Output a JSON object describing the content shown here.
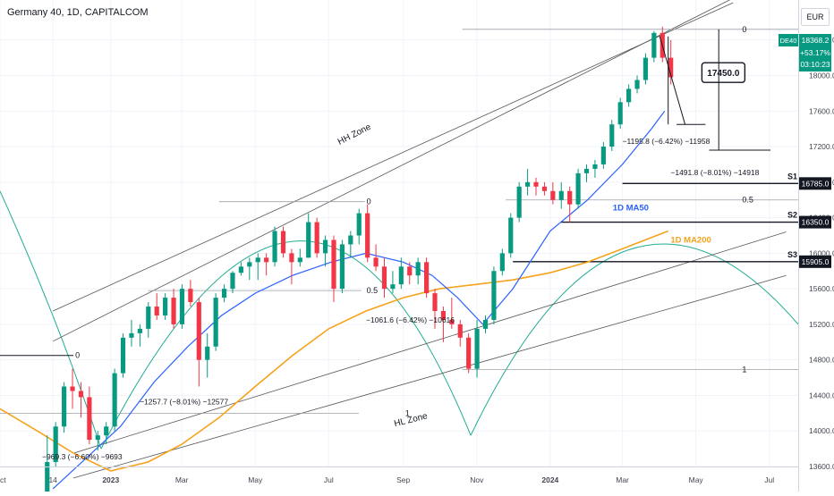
{
  "header": {
    "title": "Germany 40, 1D, CAPITALCOM"
  },
  "currency": "EUR",
  "price_badge": {
    "symbol": "DE40",
    "price": "18368.2",
    "change": "+53.17%",
    "countdown": "03:10:23",
    "color": "#089981"
  },
  "colors": {
    "up": "#089981",
    "down": "#f23645",
    "ma50": "#2962ff",
    "ma200": "#f7a21b",
    "arc": "#22ab94",
    "trend": "#555555",
    "fib": "#9aa0a6"
  },
  "chart_data": {
    "type": "candlestick",
    "symbol": "Germany 40",
    "timeframe": "1D",
    "exchange": "CAPITALCOM",
    "x_tick_labels": [
      "Oct",
      "14",
      "2023",
      "Mar",
      "May",
      "Jul",
      "Sep",
      "Nov",
      "2024",
      "Mar",
      "May",
      "Jul"
    ],
    "x_tick_dates": [
      "2022-10-01",
      "2022-11-14",
      "2023-01-01",
      "2023-03-01",
      "2023-05-01",
      "2023-07-01",
      "2023-09-01",
      "2023-11-01",
      "2024-01-01",
      "2024-03-01",
      "2024-05-01",
      "2024-07-01"
    ],
    "y_tick_labels": [
      "13600.0",
      "14000.0",
      "14400.0",
      "14800.0",
      "15200.0",
      "15600.0",
      "16000.0",
      "16400.0",
      "16800.0",
      "17200.0",
      "17600.0",
      "18000.0",
      "18400.0"
    ],
    "ylim": [
      13600,
      18850
    ],
    "candles_weekly": [
      [
        "2022-11-07",
        13200,
        13950,
        13150,
        13650
      ],
      [
        "2022-11-14",
        13650,
        14100,
        13600,
        14050
      ],
      [
        "2022-11-21",
        14050,
        14550,
        13980,
        14500
      ],
      [
        "2022-11-28",
        14500,
        14700,
        14250,
        14450
      ],
      [
        "2022-12-05",
        14450,
        14550,
        14150,
        14380
      ],
      [
        "2022-12-12",
        14380,
        14500,
        13850,
        13900
      ],
      [
        "2022-12-19",
        13900,
        14000,
        13780,
        13950
      ],
      [
        "2022-12-26",
        13950,
        14100,
        13850,
        14050
      ],
      [
        "2023-01-02",
        14050,
        14700,
        14000,
        14650
      ],
      [
        "2023-01-09",
        14650,
        15100,
        14600,
        15050
      ],
      [
        "2023-01-16",
        15050,
        15250,
        14950,
        15100
      ],
      [
        "2023-01-23",
        15100,
        15200,
        14950,
        15150
      ],
      [
        "2023-01-30",
        15150,
        15450,
        15050,
        15400
      ],
      [
        "2023-02-06",
        15400,
        15550,
        15250,
        15300
      ],
      [
        "2023-02-13",
        15300,
        15550,
        15250,
        15500
      ],
      [
        "2023-02-20",
        15500,
        15600,
        15150,
        15200
      ],
      [
        "2023-02-27",
        15200,
        15650,
        15150,
        15600
      ],
      [
        "2023-03-06",
        15600,
        15700,
        15400,
        15450
      ],
      [
        "2023-03-13",
        15450,
        15500,
        14500,
        14800
      ],
      [
        "2023-03-20",
        14800,
        15100,
        14600,
        14950
      ],
      [
        "2023-03-27",
        14950,
        15550,
        14900,
        15500
      ],
      [
        "2023-04-03",
        15500,
        15650,
        15450,
        15600
      ],
      [
        "2023-04-10",
        15600,
        15800,
        15550,
        15780
      ],
      [
        "2023-04-17",
        15780,
        15900,
        15750,
        15850
      ],
      [
        "2023-04-24",
        15850,
        15950,
        15700,
        15900
      ],
      [
        "2023-05-01",
        15900,
        16000,
        15700,
        15950
      ],
      [
        "2023-05-08",
        15950,
        16000,
        15750,
        15900
      ],
      [
        "2023-05-15",
        15900,
        16300,
        15850,
        16250
      ],
      [
        "2023-05-22",
        16250,
        16300,
        15950,
        16000
      ],
      [
        "2023-05-29",
        16000,
        16050,
        15650,
        15900
      ],
      [
        "2023-06-05",
        15900,
        16050,
        15850,
        15950
      ],
      [
        "2023-06-12",
        15950,
        16450,
        15950,
        16350
      ],
      [
        "2023-06-19",
        16350,
        16400,
        15950,
        16000
      ],
      [
        "2023-06-26",
        16000,
        16200,
        15850,
        16150
      ],
      [
        "2023-07-03",
        16150,
        16200,
        15450,
        15600
      ],
      [
        "2023-07-10",
        15600,
        16150,
        15550,
        16100
      ],
      [
        "2023-07-17",
        16100,
        16250,
        15950,
        16200
      ],
      [
        "2023-07-24",
        16200,
        16500,
        16100,
        16450
      ],
      [
        "2023-07-31",
        16450,
        16550,
        15900,
        15950
      ],
      [
        "2023-08-07",
        15950,
        16100,
        15800,
        15850
      ],
      [
        "2023-08-14",
        15850,
        15950,
        15500,
        15600
      ],
      [
        "2023-08-21",
        15600,
        15800,
        15550,
        15650
      ],
      [
        "2023-08-28",
        15650,
        15950,
        15600,
        15850
      ],
      [
        "2023-09-04",
        15850,
        15900,
        15650,
        15750
      ],
      [
        "2023-09-11",
        15750,
        15950,
        15650,
        15900
      ],
      [
        "2023-09-18",
        15900,
        15950,
        15500,
        15550
      ],
      [
        "2023-09-25",
        15550,
        15600,
        15150,
        15350
      ],
      [
        "2023-10-02",
        15350,
        15400,
        15000,
        15250
      ],
      [
        "2023-10-09",
        15250,
        15500,
        15150,
        15200
      ],
      [
        "2023-10-16",
        15200,
        15250,
        14950,
        15050
      ],
      [
        "2023-10-23",
        15050,
        15100,
        14650,
        14700
      ],
      [
        "2023-10-30",
        14700,
        15250,
        14600,
        15150
      ],
      [
        "2023-11-06",
        15150,
        15300,
        15100,
        15250
      ],
      [
        "2023-11-13",
        15250,
        15850,
        15200,
        15800
      ],
      [
        "2023-11-20",
        15800,
        16050,
        15750,
        16000
      ],
      [
        "2023-11-27",
        16000,
        16450,
        15950,
        16400
      ],
      [
        "2023-12-04",
        16400,
        16800,
        16350,
        16750
      ],
      [
        "2023-12-11",
        16750,
        16950,
        16650,
        16800
      ],
      [
        "2023-12-18",
        16800,
        16850,
        16650,
        16750
      ],
      [
        "2023-12-25",
        16750,
        16800,
        16650,
        16700
      ],
      [
        "2024-01-01",
        16700,
        16800,
        16550,
        16600
      ],
      [
        "2024-01-08",
        16600,
        16800,
        16500,
        16700
      ],
      [
        "2024-01-15",
        16700,
        16750,
        16350,
        16550
      ],
      [
        "2024-01-22",
        16550,
        16950,
        16500,
        16900
      ],
      [
        "2024-01-29",
        16900,
        17000,
        16800,
        16950
      ],
      [
        "2024-02-05",
        16950,
        17050,
        16850,
        17000
      ],
      [
        "2024-02-12",
        17000,
        17250,
        16950,
        17200
      ],
      [
        "2024-02-19",
        17200,
        17500,
        17150,
        17450
      ],
      [
        "2024-02-26",
        17450,
        17750,
        17400,
        17700
      ],
      [
        "2024-03-04",
        17700,
        17900,
        17650,
        17850
      ],
      [
        "2024-03-11",
        17850,
        18000,
        17800,
        17950
      ],
      [
        "2024-03-18",
        17950,
        18250,
        17900,
        18200
      ],
      [
        "2024-03-25",
        18200,
        18500,
        18150,
        18480
      ],
      [
        "2024-04-01",
        18480,
        18550,
        18150,
        18200
      ],
      [
        "2024-04-08",
        18200,
        18400,
        17900,
        17980
      ]
    ],
    "ma50": [
      [
        "2022-11-14",
        13350
      ],
      [
        "2022-12-12",
        13700
      ],
      [
        "2023-01-09",
        14050
      ],
      [
        "2023-02-06",
        14550
      ],
      [
        "2023-03-06",
        14950
      ],
      [
        "2023-04-03",
        15300
      ],
      [
        "2023-05-01",
        15550
      ],
      [
        "2023-06-01",
        15750
      ],
      [
        "2023-07-03",
        15900
      ],
      [
        "2023-08-01",
        16000
      ],
      [
        "2023-09-01",
        15900
      ],
      [
        "2023-09-25",
        15750
      ],
      [
        "2023-10-16",
        15500
      ],
      [
        "2023-11-06",
        15200
      ],
      [
        "2023-12-01",
        15600
      ],
      [
        "2024-01-01",
        16250
      ],
      [
        "2024-02-01",
        16600
      ],
      [
        "2024-03-01",
        17000
      ],
      [
        "2024-03-25",
        17400
      ],
      [
        "2024-04-05",
        17600
      ]
    ],
    "ma200": [
      [
        "2022-10-01",
        14250
      ],
      [
        "2022-11-01",
        14000
      ],
      [
        "2022-12-01",
        13750
      ],
      [
        "2023-01-01",
        13550
      ],
      [
        "2023-02-01",
        13650
      ],
      [
        "2023-03-01",
        13850
      ],
      [
        "2023-04-01",
        14150
      ],
      [
        "2023-05-01",
        14500
      ],
      [
        "2023-06-01",
        14850
      ],
      [
        "2023-07-01",
        15150
      ],
      [
        "2023-08-01",
        15350
      ],
      [
        "2023-09-01",
        15500
      ],
      [
        "2023-10-01",
        15600
      ],
      [
        "2023-11-01",
        15650
      ],
      [
        "2023-12-01",
        15700
      ],
      [
        "2024-01-01",
        15780
      ],
      [
        "2024-02-01",
        15900
      ],
      [
        "2024-03-01",
        16050
      ],
      [
        "2024-04-08",
        16250
      ]
    ],
    "horizontal_levels": [
      {
        "label": "S1",
        "value": "16785.0",
        "price": 16785
      },
      {
        "label": "S2",
        "value": "16350.0",
        "price": 16350
      },
      {
        "label": "S3",
        "value": "15905.0",
        "price": 15905
      }
    ],
    "zone_labels": [
      "HH Zone",
      "HL Zone"
    ],
    "ma_labels": [
      "1D MA50",
      "1D MA200"
    ],
    "fib_labels": [
      "0",
      "0.5",
      "1"
    ],
    "target_label": "17450.0",
    "target_price": 17450,
    "measurements": [
      "−969.3 (−6.60%) −9693",
      "−1257.7 (−8.01%) −12577",
      "−1061.6 (−6.42%) −10616",
      "−1195.8 (−6.42%) −11958",
      "−1491.8 (−8.01%) −14918"
    ]
  }
}
